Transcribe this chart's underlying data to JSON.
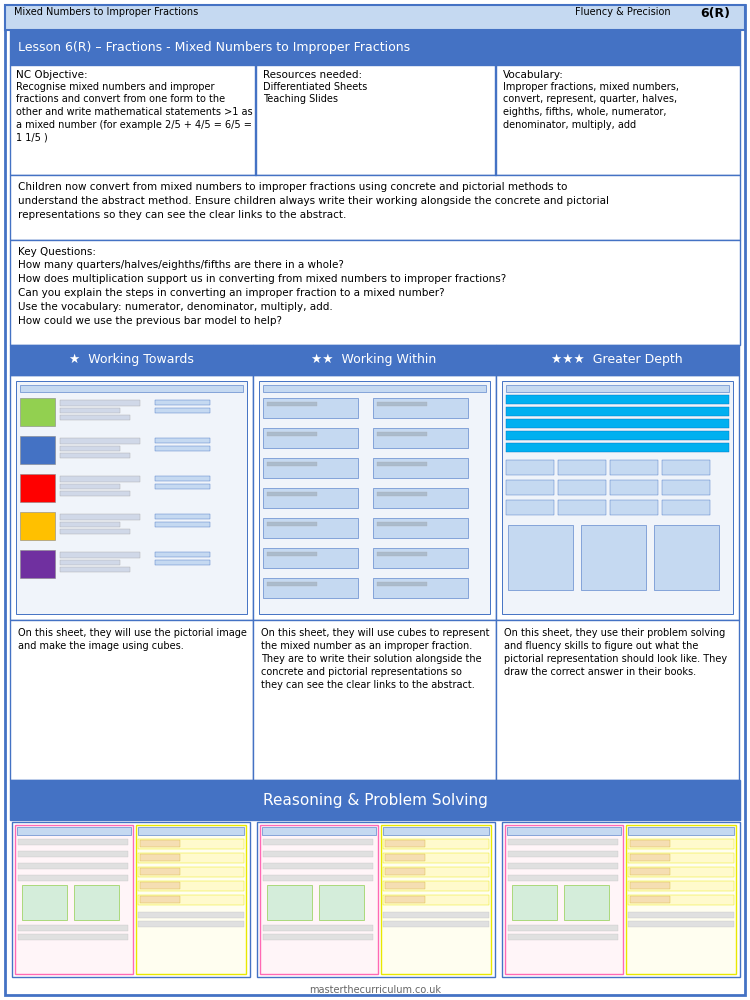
{
  "page_bg": "#ffffff",
  "border_color": "#4472c4",
  "header_bg": "#c5d9f1",
  "dark_blue_bg": "#4472c4",
  "top_header_left": "Mixed Numbers to Improper Fractions",
  "top_header_right": "Fluency & Precision",
  "top_header_num": "6(R)",
  "title_bar_text": "Lesson 6(R) – Fractions - Mixed Numbers to Improper Fractions",
  "nc_objective_title": "NC Objective:",
  "nc_objective_body": "Recognise mixed numbers and improper\nfractions and convert from one form to the\nother and write mathematical statements >1 as\na mixed number (for example 2/5 + 4/5 = 6/5 =\n1 1/5 )",
  "resources_title": "Resources needed:",
  "resources_body": "Differentiated Sheets\nTeaching Slides",
  "vocab_title": "Vocabulary:",
  "vocab_body": "Improper fractions, mixed numbers,\nconvert, represent, quarter, halves,\neighths, fifths, whole, numerator,\ndenominator, multiply, add",
  "teacher_note": "Children now convert from mixed numbers to improper fractions using concrete and pictorial methods to\nunderstand the abstract method. Ensure children always write their working alongside the concrete and pictorial\nrepresentations so they can see the clear links to the abstract.",
  "key_questions_title": "Key Questions:",
  "key_questions": [
    "How many quarters/halves/eighths/fifths are there in a whole?",
    "How does multiplication support us in converting from mixed numbers to improper fractions?",
    "Can you explain the steps in converting an improper fraction to a mixed number?",
    "Use the vocabulary: numerator, denominator, multiply, add.",
    "How could we use the previous bar model to help?"
  ],
  "col1_header": "★  Working Towards",
  "col2_header": "★★  Working Within",
  "col3_header": "★★★  Greater Depth",
  "col1_desc": "On this sheet, they will use the pictorial image\nand make the image using cubes.",
  "col2_desc": "On this sheet, they will use cubes to represent\nthe mixed number as an improper fraction.\nThey are to write their solution alongside the\nconcrete and pictorial representations so\nthey can see the clear links to the abstract.",
  "col3_desc": "On this sheet, they use their problem solving\nand fluency skills to figure out what the\npictorial representation should look like. They\ndraw the correct answer in their books.",
  "rps_title": "Reasoning & Problem Solving",
  "footer_text": "masterthecurriculum.co.uk",
  "wt_colors": [
    "#92d050",
    "#4472c4",
    "#ff0000",
    "#ffc000",
    "#7030a0"
  ],
  "rps_left_border": "#ff69b4",
  "rps_right_border": "#ffff00"
}
